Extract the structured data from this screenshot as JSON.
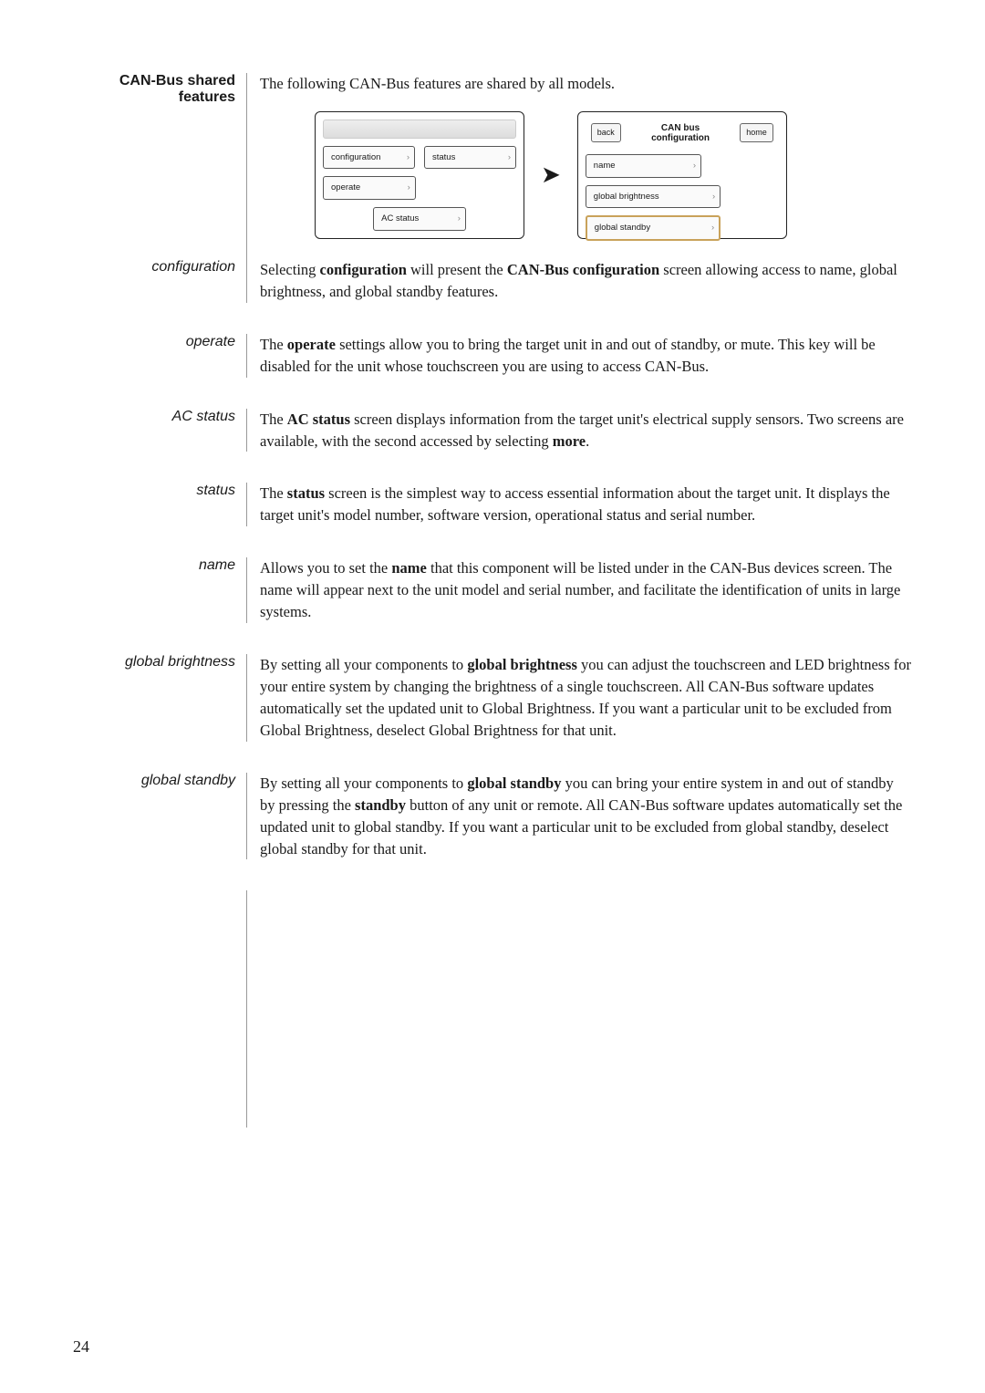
{
  "header": {
    "left_title": "CAN-Bus shared features",
    "intro": "The following CAN-Bus features are shared by all models."
  },
  "diagram": {
    "left_screen": {
      "btn_config": "configuration",
      "btn_status": "status",
      "btn_operate": "operate",
      "btn_ac": "AC status"
    },
    "right_screen": {
      "back": "back",
      "home": "home",
      "title_l1": "CAN bus",
      "title_l2": "configuration",
      "btn_name": "name",
      "btn_gb": "global brightness",
      "btn_gs": "global standby"
    }
  },
  "sections": [
    {
      "label": "configuration",
      "body": [
        {
          "t": "Selecting "
        },
        {
          "t": "configuration",
          "b": true
        },
        {
          "t": " will present the "
        },
        {
          "t": "CAN-Bus configuration",
          "b": true
        },
        {
          "t": " screen allowing access to name, global brightness, and global standby features."
        }
      ]
    },
    {
      "label": "operate",
      "body": [
        {
          "t": "The "
        },
        {
          "t": "operate",
          "b": true
        },
        {
          "t": " settings allow you to bring the target unit in and out of standby, or mute. This key will be disabled for the unit whose touchscreen you are using to access CAN-Bus."
        }
      ]
    },
    {
      "label": "AC status",
      "body": [
        {
          "t": "The "
        },
        {
          "t": "AC status",
          "b": true
        },
        {
          "t": " screen displays information from the target unit's electrical supply sensors. Two screens are available, with the second accessed by selecting "
        },
        {
          "t": "more",
          "b": true
        },
        {
          "t": "."
        }
      ]
    },
    {
      "label": "status",
      "body": [
        {
          "t": "The "
        },
        {
          "t": "status",
          "b": true
        },
        {
          "t": " screen is the simplest way to access essential information about the target unit. It displays the target unit's model number, software version, operational status and serial number."
        }
      ]
    },
    {
      "label": "name",
      "body": [
        {
          "t": "Allows you to set the "
        },
        {
          "t": "name",
          "b": true
        },
        {
          "t": " that this component will be listed under in the CAN-Bus devices screen. The name will appear next to the unit model and serial number, and facilitate the identification of units in large systems."
        }
      ]
    },
    {
      "label": "global brightness",
      "body": [
        {
          "t": "By setting all your components to "
        },
        {
          "t": "global brightness",
          "b": true
        },
        {
          "t": " you can adjust the touchscreen and LED brightness for your entire system by changing the brightness of a single touchscreen. All CAN-Bus software updates automatically set the updated unit to Global Brightness. If you want a particular unit to be excluded from Global Brightness, deselect Global Brightness for that unit."
        }
      ]
    },
    {
      "label": "global standby",
      "body": [
        {
          "t": "By setting all your components to "
        },
        {
          "t": "global standby",
          "b": true
        },
        {
          "t": " you can bring your entire system in and out of standby by pressing the "
        },
        {
          "t": "standby",
          "b": true
        },
        {
          "t": " button of any unit or remote. All CAN-Bus software updates automatically set the updated unit to global standby. If you want a particular unit to be excluded from global standby, deselect global standby for that unit."
        }
      ]
    }
  ],
  "page_number": "24"
}
